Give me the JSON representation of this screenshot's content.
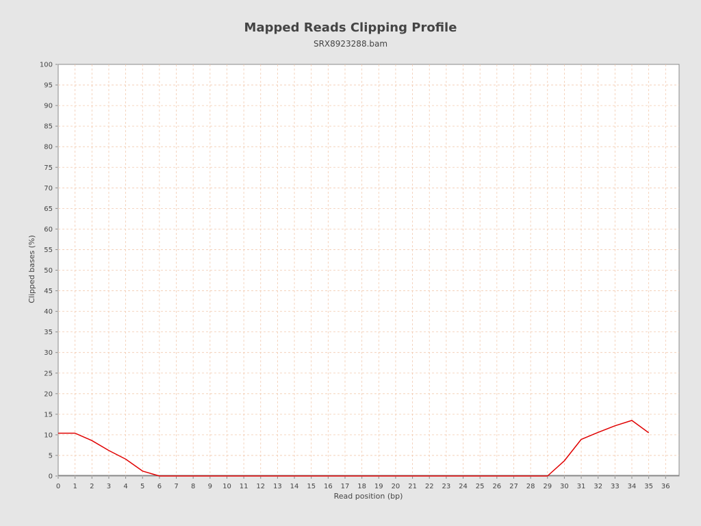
{
  "chart_data": {
    "type": "line",
    "title": "Mapped Reads Clipping Profile",
    "subtitle": "SRX8923288.bam",
    "xlabel": "Read position (bp)",
    "ylabel": "Clipped bases (%)",
    "xlim": [
      0,
      36.8
    ],
    "ylim": [
      0,
      100
    ],
    "x_ticks": [
      0,
      1,
      2,
      3,
      4,
      5,
      6,
      7,
      8,
      9,
      10,
      11,
      12,
      13,
      14,
      15,
      16,
      17,
      18,
      19,
      20,
      21,
      22,
      23,
      24,
      25,
      26,
      27,
      28,
      29,
      30,
      31,
      32,
      33,
      34,
      35,
      36
    ],
    "y_ticks": [
      0,
      5,
      10,
      15,
      20,
      25,
      30,
      35,
      40,
      45,
      50,
      55,
      60,
      65,
      70,
      75,
      80,
      85,
      90,
      95,
      100
    ],
    "grid": true,
    "series": [
      {
        "color": "#e00000",
        "x": [
          0,
          1,
          2,
          3,
          4,
          5,
          6,
          7,
          8,
          9,
          10,
          11,
          12,
          13,
          14,
          15,
          16,
          17,
          18,
          19,
          20,
          21,
          22,
          23,
          24,
          25,
          26,
          27,
          28,
          29,
          30,
          31,
          32,
          33,
          34,
          35
        ],
        "y": [
          10.4,
          10.4,
          8.6,
          6.2,
          4.1,
          1.2,
          0,
          0,
          0,
          0,
          0,
          0,
          0,
          0,
          0,
          0,
          0,
          0,
          0,
          0,
          0,
          0,
          0,
          0,
          0,
          0,
          0,
          0,
          0,
          0,
          3.7,
          8.9,
          10.6,
          12.2,
          13.5,
          10.5
        ]
      }
    ]
  },
  "colors": {
    "background": "#e6e6e6",
    "plot_background": "#ffffff",
    "grid": "#f2c9ae",
    "line": "#e00000"
  }
}
